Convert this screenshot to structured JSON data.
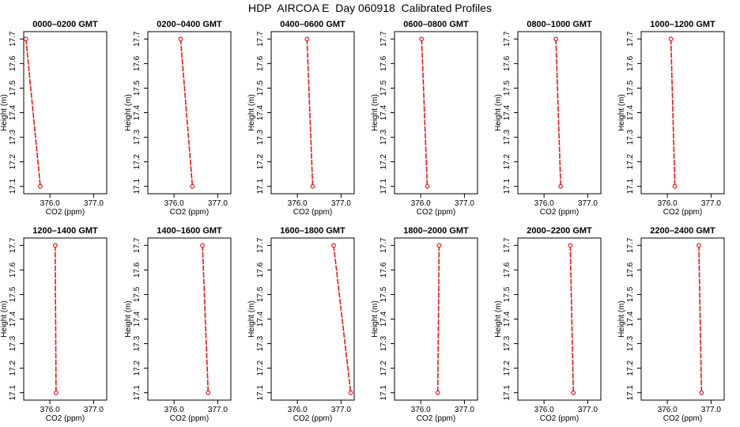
{
  "title": "HDP  AIRCOA E  Day 060918  Calibrated Profiles",
  "colors": {
    "line": "#e41a1c",
    "axis": "#000000",
    "background": "#ffffff"
  },
  "chart_data": [
    {
      "type": "line",
      "title": "0000–0200 GMT",
      "xlabel": "CO2 (ppm)",
      "ylabel": "Height (m)",
      "xlim": [
        375.4,
        377.3
      ],
      "ylim": [
        17.07,
        17.73
      ],
      "xticks": [
        "376.0",
        "377.0"
      ],
      "yticks": [
        "17.1",
        "17.2",
        "17.3",
        "17.4",
        "17.5",
        "17.6",
        "17.7"
      ],
      "grid": false,
      "series": [
        {
          "x": [
            375.45,
            375.78
          ],
          "y": [
            17.7,
            17.1
          ]
        }
      ]
    },
    {
      "type": "line",
      "title": "0200–0400 GMT",
      "xlabel": "CO2 (ppm)",
      "ylabel": "Height (m)",
      "xlim": [
        375.4,
        377.3
      ],
      "ylim": [
        17.07,
        17.73
      ],
      "xticks": [
        "376.0",
        "377.0"
      ],
      "yticks": [
        "17.1",
        "17.2",
        "17.3",
        "17.4",
        "17.5",
        "17.6",
        "17.7"
      ],
      "grid": false,
      "series": [
        {
          "x": [
            376.15,
            376.42
          ],
          "y": [
            17.7,
            17.1
          ]
        }
      ]
    },
    {
      "type": "line",
      "title": "0400–0600 GMT",
      "xlabel": "CO2 (ppm)",
      "ylabel": "Height (m)",
      "xlim": [
        375.4,
        377.3
      ],
      "ylim": [
        17.07,
        17.73
      ],
      "xticks": [
        "376.0",
        "377.0"
      ],
      "yticks": [
        "17.1",
        "17.2",
        "17.3",
        "17.4",
        "17.5",
        "17.6",
        "17.7"
      ],
      "grid": false,
      "series": [
        {
          "x": [
            376.22,
            376.35
          ],
          "y": [
            17.7,
            17.1
          ]
        }
      ]
    },
    {
      "type": "line",
      "title": "0600–0800 GMT",
      "xlabel": "CO2 (ppm)",
      "ylabel": "Height (m)",
      "xlim": [
        375.4,
        377.3
      ],
      "ylim": [
        17.07,
        17.73
      ],
      "xticks": [
        "376.0",
        "377.0"
      ],
      "yticks": [
        "17.1",
        "17.2",
        "17.3",
        "17.4",
        "17.5",
        "17.6",
        "17.7"
      ],
      "grid": false,
      "series": [
        {
          "x": [
            376.02,
            376.15
          ],
          "y": [
            17.7,
            17.1
          ]
        }
      ]
    },
    {
      "type": "line",
      "title": "0800–1000 GMT",
      "xlabel": "CO2 (ppm)",
      "ylabel": "Height (m)",
      "xlim": [
        375.4,
        377.3
      ],
      "ylim": [
        17.07,
        17.73
      ],
      "xticks": [
        "376.0",
        "377.0"
      ],
      "yticks": [
        "17.1",
        "17.2",
        "17.3",
        "17.4",
        "17.5",
        "17.6",
        "17.7"
      ],
      "grid": false,
      "series": [
        {
          "x": [
            376.27,
            376.38
          ],
          "y": [
            17.7,
            17.1
          ]
        }
      ]
    },
    {
      "type": "line",
      "title": "1000–1200 GMT",
      "xlabel": "CO2 (ppm)",
      "ylabel": "Height (m)",
      "xlim": [
        375.4,
        377.3
      ],
      "ylim": [
        17.07,
        17.73
      ],
      "xticks": [
        "376.0",
        "377.0"
      ],
      "yticks": [
        "17.1",
        "17.2",
        "17.3",
        "17.4",
        "17.5",
        "17.6",
        "17.7"
      ],
      "grid": false,
      "series": [
        {
          "x": [
            376.08,
            376.17
          ],
          "y": [
            17.7,
            17.1
          ]
        }
      ]
    },
    {
      "type": "line",
      "title": "1200–1400 GMT",
      "xlabel": "CO2 (ppm)",
      "ylabel": "Height (m)",
      "xlim": [
        375.4,
        377.3
      ],
      "ylim": [
        17.07,
        17.73
      ],
      "xticks": [
        "376.0",
        "377.0"
      ],
      "yticks": [
        "17.1",
        "17.2",
        "17.3",
        "17.4",
        "17.5",
        "17.6",
        "17.7"
      ],
      "grid": false,
      "series": [
        {
          "x": [
            376.12,
            376.14
          ],
          "y": [
            17.7,
            17.1
          ]
        }
      ]
    },
    {
      "type": "line",
      "title": "1400–1600 GMT",
      "xlabel": "CO2 (ppm)",
      "ylabel": "Height (m)",
      "xlim": [
        375.4,
        377.3
      ],
      "ylim": [
        17.07,
        17.73
      ],
      "xticks": [
        "376.0",
        "377.0"
      ],
      "yticks": [
        "17.1",
        "17.2",
        "17.3",
        "17.4",
        "17.5",
        "17.6",
        "17.7"
      ],
      "grid": false,
      "series": [
        {
          "x": [
            376.65,
            376.78
          ],
          "y": [
            17.7,
            17.1
          ]
        }
      ]
    },
    {
      "type": "line",
      "title": "1600–1800 GMT",
      "xlabel": "CO2 (ppm)",
      "ylabel": "Height (m)",
      "xlim": [
        375.4,
        377.3
      ],
      "ylim": [
        17.07,
        17.73
      ],
      "xticks": [
        "376.0",
        "377.0"
      ],
      "yticks": [
        "17.1",
        "17.2",
        "17.3",
        "17.4",
        "17.5",
        "17.6",
        "17.7"
      ],
      "grid": false,
      "series": [
        {
          "x": [
            376.83,
            377.22
          ],
          "y": [
            17.7,
            17.1
          ]
        }
      ]
    },
    {
      "type": "line",
      "title": "1800–2000 GMT",
      "xlabel": "CO2 (ppm)",
      "ylabel": "Height (m)",
      "xlim": [
        375.4,
        377.3
      ],
      "ylim": [
        17.07,
        17.73
      ],
      "xticks": [
        "376.0",
        "377.0"
      ],
      "yticks": [
        "17.1",
        "17.2",
        "17.3",
        "17.4",
        "17.5",
        "17.6",
        "17.7"
      ],
      "grid": false,
      "series": [
        {
          "x": [
            376.42,
            376.39
          ],
          "y": [
            17.7,
            17.1
          ]
        }
      ]
    },
    {
      "type": "line",
      "title": "2000–2200 GMT",
      "xlabel": "CO2 (ppm)",
      "ylabel": "Height (m)",
      "xlim": [
        375.4,
        377.3
      ],
      "ylim": [
        17.07,
        17.73
      ],
      "xticks": [
        "376.0",
        "377.0"
      ],
      "yticks": [
        "17.1",
        "17.2",
        "17.3",
        "17.4",
        "17.5",
        "17.6",
        "17.7"
      ],
      "grid": false,
      "series": [
        {
          "x": [
            376.6,
            376.67
          ],
          "y": [
            17.7,
            17.1
          ]
        }
      ]
    },
    {
      "type": "line",
      "title": "2200–2400 GMT",
      "xlabel": "CO2 (ppm)",
      "ylabel": "Height (m)",
      "xlim": [
        375.4,
        377.3
      ],
      "ylim": [
        17.07,
        17.73
      ],
      "xticks": [
        "376.0",
        "377.0"
      ],
      "yticks": [
        "17.1",
        "17.2",
        "17.3",
        "17.4",
        "17.5",
        "17.6",
        "17.7"
      ],
      "grid": false,
      "series": [
        {
          "x": [
            376.72,
            376.78
          ],
          "y": [
            17.7,
            17.1
          ]
        }
      ]
    }
  ]
}
